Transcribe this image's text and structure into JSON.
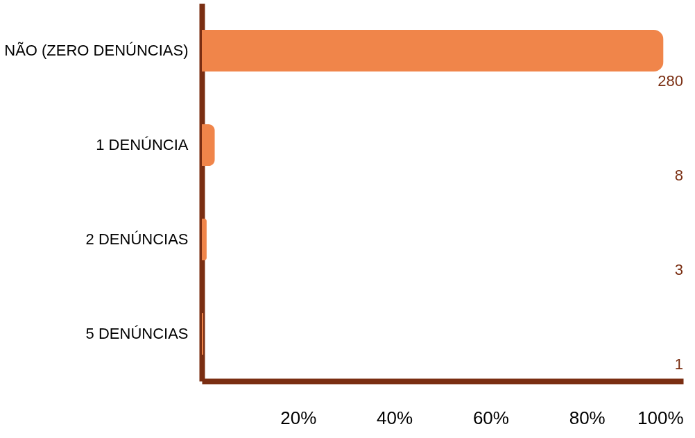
{
  "chart_data": {
    "type": "bar",
    "orientation": "horizontal",
    "categories": [
      "NÃO (ZERO DENÚNCIAS)",
      "1 DENÚNCIA",
      "2 DENÚNCIAS",
      "5 DENÚNCIAS"
    ],
    "values": [
      95.9,
      2.7,
      1.0,
      0.3
    ],
    "color": "#f0854a",
    "xlim": [
      0,
      100
    ],
    "xticks": [
      {
        "value": 20,
        "label": "20%"
      },
      {
        "value": 40,
        "label": "40%"
      },
      {
        "value": 60,
        "label": "60%"
      },
      {
        "value": 80,
        "label": "80%"
      },
      {
        "value": 100,
        "label": "100%"
      }
    ],
    "annotations": [
      "280",
      "8",
      "3",
      "1"
    ],
    "grid": false
  }
}
